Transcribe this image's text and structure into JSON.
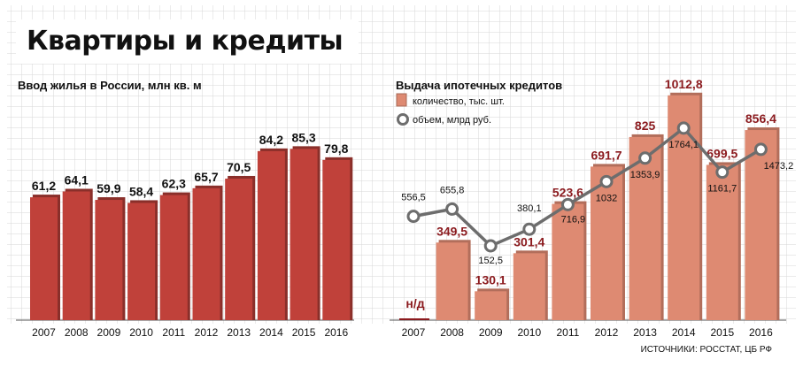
{
  "header": {
    "title": "Квартиры и кредиты"
  },
  "source": "ИСТОЧНИКИ: РОССТАТ, ЦБ РФ",
  "colors": {
    "housing_bar": "#c0413a",
    "mortgage_bar": "#de8a72",
    "volume_line": "#6d6d6d",
    "value_label_red": "#8b1a1e",
    "grid": "#d7d7d7"
  },
  "chart_data": [
    {
      "type": "bar",
      "title": "Ввод жилья в России, млн кв. м",
      "categories": [
        "2007",
        "2008",
        "2009",
        "2010",
        "2011",
        "2012",
        "2013",
        "2014",
        "2015",
        "2016"
      ],
      "values": [
        61.2,
        64.1,
        59.9,
        58.4,
        62.3,
        65.7,
        70.5,
        84.2,
        85.3,
        79.8
      ],
      "labels": [
        "61,2",
        "64,1",
        "59,9",
        "58,4",
        "62,3",
        "65,7",
        "70,5",
        "84,2",
        "85,3",
        "79,8"
      ],
      "ylim": [
        0,
        100
      ],
      "grid": true
    },
    {
      "type": "bar+line",
      "title": "Выдача ипотечных кредитов",
      "categories": [
        "2007",
        "2008",
        "2009",
        "2010",
        "2011",
        "2012",
        "2013",
        "2014",
        "2015",
        "2016"
      ],
      "series": [
        {
          "name": "количество, тыс. шт.",
          "type": "bar",
          "values": [
            null,
            349.5,
            130.1,
            301.4,
            523.6,
            691.7,
            825,
            1012.8,
            699.5,
            856.4
          ],
          "labels": [
            "н/д",
            "349,5",
            "130,1",
            "301,4",
            "523,6",
            "691,7",
            "825",
            "1012,8",
            "699,5",
            "856,4"
          ]
        },
        {
          "name": "объем, млрд руб.",
          "type": "line",
          "values": [
            556.5,
            655.8,
            152.5,
            380.1,
            716.9,
            1032,
            1353.9,
            1764.1,
            1161.7,
            1473.2
          ],
          "labels": [
            "556,5",
            "655,8",
            "152,5",
            "380,1",
            "716,9",
            "1032",
            "1353,9",
            "1764,1",
            "1161,7",
            "1473,2"
          ]
        }
      ],
      "grid": true
    }
  ]
}
